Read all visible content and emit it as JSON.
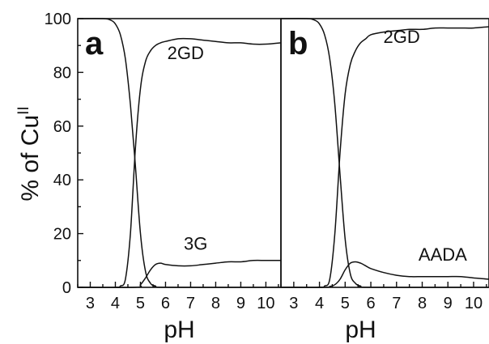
{
  "chart_data": [
    {
      "type": "line",
      "panel_label": "a",
      "xlabel": "pH",
      "ylabel": "% of Cu",
      "ylabel_superscript": "II",
      "xlim": [
        2.5,
        10.6
      ],
      "ylim": [
        0,
        100
      ],
      "x_ticks": [
        3,
        4,
        5,
        6,
        7,
        8,
        9,
        10
      ],
      "y_ticks": [
        0,
        20,
        40,
        60,
        80,
        100
      ],
      "series": [
        {
          "x": [
            2.5,
            3.5,
            3.8,
            4.0,
            4.2,
            4.4,
            4.6,
            4.8,
            5.0,
            5.2,
            5.4,
            5.6,
            6.0,
            10.6
          ],
          "y": [
            100,
            100,
            99.5,
            98,
            94,
            85,
            68,
            45,
            20,
            6,
            1.5,
            0.5,
            0,
            0
          ]
        },
        {
          "name": "2GD",
          "x": [
            2.5,
            4.0,
            4.2,
            4.4,
            4.6,
            4.8,
            5.0,
            5.2,
            5.4,
            5.6,
            5.8,
            6.0,
            6.5,
            7.0,
            7.5,
            8.0,
            8.5,
            9.0,
            9.5,
            10.0,
            10.6
          ],
          "y": [
            0,
            0,
            0.5,
            3,
            20,
            52,
            74,
            84,
            88,
            90,
            91,
            91.5,
            92.5,
            92.5,
            92,
            91.5,
            91,
            91,
            90.5,
            90.5,
            91
          ]
        },
        {
          "name": "3G",
          "x": [
            2.5,
            4.8,
            5.0,
            5.2,
            5.4,
            5.6,
            5.8,
            6.0,
            6.5,
            7.0,
            7.5,
            8.0,
            8.5,
            9.0,
            9.5,
            10.0,
            10.6
          ],
          "y": [
            0,
            0,
            1,
            3.5,
            6.5,
            8.5,
            9,
            8.5,
            8,
            8,
            8.5,
            9,
            9.5,
            9.5,
            10,
            10,
            10
          ]
        }
      ],
      "annotations": [
        {
          "text": "2GD",
          "x": 6.8,
          "y": 85
        },
        {
          "text": "3G",
          "x": 7.2,
          "y": 14
        }
      ]
    },
    {
      "type": "line",
      "panel_label": "b",
      "xlabel": "pH",
      "xlim": [
        2.5,
        10.6
      ],
      "ylim": [
        0,
        100
      ],
      "x_ticks": [
        3,
        4,
        5,
        6,
        7,
        8,
        9,
        10
      ],
      "series": [
        {
          "x": [
            2.5,
            3.5,
            3.8,
            4.0,
            4.2,
            4.4,
            4.6,
            4.8,
            5.0,
            5.2,
            5.4,
            5.6,
            6.0,
            10.6
          ],
          "y": [
            100,
            100,
            99.5,
            98,
            94,
            85,
            68,
            42,
            18,
            5,
            1.5,
            0.5,
            0,
            0
          ]
        },
        {
          "name": "2GD",
          "x": [
            2.5,
            4.0,
            4.2,
            4.4,
            4.6,
            4.8,
            5.0,
            5.2,
            5.4,
            5.6,
            5.8,
            6.0,
            6.5,
            7.0,
            7.5,
            8.0,
            8.5,
            9.0,
            9.5,
            10.0,
            10.6
          ],
          "y": [
            0,
            0,
            0.5,
            3,
            20,
            50,
            72,
            83,
            88,
            91,
            92.5,
            94,
            95,
            95.5,
            96,
            96,
            96.5,
            96.5,
            96.5,
            96.5,
            97
          ]
        },
        {
          "name": "AADA",
          "x": [
            2.5,
            4.2,
            4.4,
            4.6,
            4.8,
            5.0,
            5.2,
            5.4,
            5.6,
            5.8,
            6.0,
            6.5,
            7.0,
            7.5,
            8.0,
            8.5,
            9.0,
            9.5,
            10.0,
            10.6
          ],
          "y": [
            0,
            0,
            0.3,
            1,
            3,
            6.5,
            9,
            9.5,
            9,
            8,
            7,
            5.5,
            4.5,
            4,
            4,
            4,
            4,
            4,
            3.5,
            3
          ]
        }
      ],
      "annotations": [
        {
          "text": "2GD",
          "x": 7.2,
          "y": 91
        },
        {
          "text": "AADA",
          "x": 8.8,
          "y": 10
        }
      ]
    }
  ]
}
